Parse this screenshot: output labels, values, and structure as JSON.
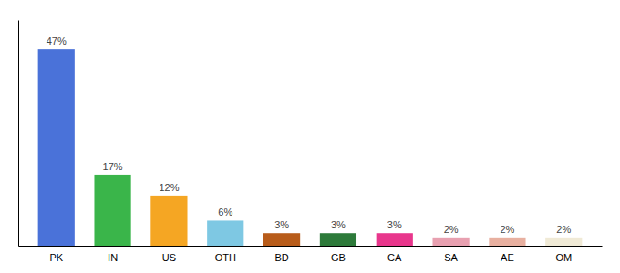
{
  "chart_data": {
    "type": "bar",
    "categories": [
      "PK",
      "IN",
      "US",
      "OTH",
      "BD",
      "GB",
      "CA",
      "SA",
      "AE",
      "OM"
    ],
    "values": [
      47,
      17,
      12,
      6,
      3,
      3,
      3,
      2,
      2,
      2
    ],
    "value_labels": [
      "47%",
      "17%",
      "12%",
      "6%",
      "3%",
      "3%",
      "3%",
      "2%",
      "2%",
      "2%"
    ],
    "colors": [
      "#4a72d9",
      "#3ab54a",
      "#f5a623",
      "#7ec8e3",
      "#b85c1a",
      "#2d7a3a",
      "#e8368c",
      "#e8a0b0",
      "#e8b0a0",
      "#f0ead6"
    ],
    "ylim": [
      0,
      54
    ],
    "data_labels": true,
    "tick_labels": "x"
  }
}
